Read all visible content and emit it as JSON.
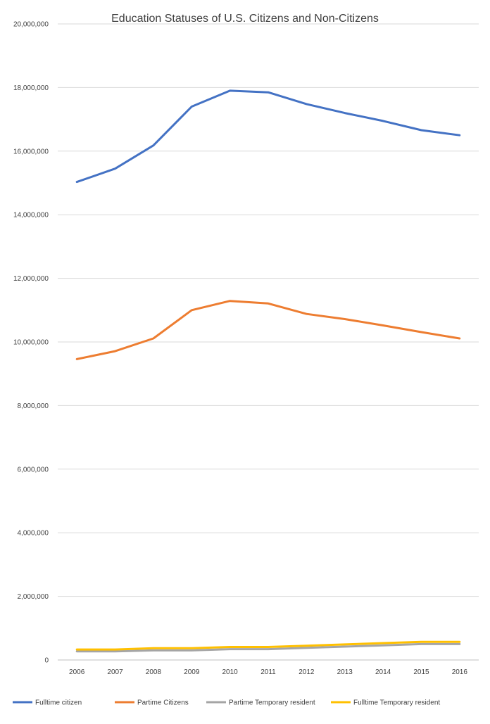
{
  "chart_data": {
    "type": "line",
    "title": "Education Statuses of U.S. Citizens and Non-Citizens",
    "xlabel": "",
    "ylabel": "",
    "categories": [
      "2006",
      "2007",
      "2008",
      "2009",
      "2010",
      "2011",
      "2012",
      "2013",
      "2014",
      "2015",
      "2016"
    ],
    "ylim": [
      0,
      20000000
    ],
    "y_ticks": [
      0,
      2000000,
      4000000,
      6000000,
      8000000,
      10000000,
      12000000,
      14000000,
      16000000,
      18000000,
      20000000
    ],
    "y_tick_labels": [
      "0",
      "2,000,000",
      "4,000,000",
      "6,000,000",
      "8,000,000",
      "10,000,000",
      "12,000,000",
      "14,000,000",
      "16,000,000",
      "18,000,000",
      "20,000,000"
    ],
    "grid": true,
    "legend_position": "bottom",
    "series": [
      {
        "name": "Fulltime citizen",
        "color": "#4472c4",
        "values": [
          15030000,
          15450000,
          16180000,
          17400000,
          17900000,
          17850000,
          17480000,
          17200000,
          16950000,
          16660000,
          16500000
        ]
      },
      {
        "name": "Partime Citizens",
        "color": "#ed7d31",
        "values": [
          9460000,
          9710000,
          10110000,
          11000000,
          11290000,
          11210000,
          10880000,
          10720000,
          10520000,
          10310000,
          10110000
        ]
      },
      {
        "name": "Partime Temporary resident",
        "color": "#a5a5a5",
        "values": [
          270000,
          270000,
          300000,
          300000,
          340000,
          340000,
          380000,
          420000,
          460000,
          500000,
          500000
        ]
      },
      {
        "name": "Fulltime Temporary resident",
        "color": "#ffc000",
        "values": [
          330000,
          330000,
          370000,
          370000,
          410000,
          410000,
          450000,
          490000,
          530000,
          570000,
          570000
        ]
      }
    ]
  }
}
